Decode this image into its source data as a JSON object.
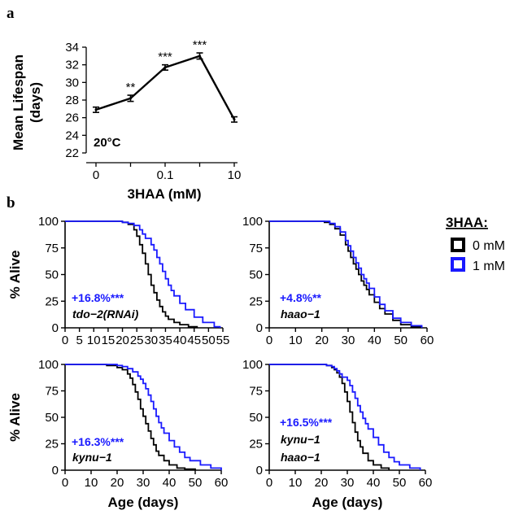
{
  "figure": {
    "panel_a_letter": "a",
    "panel_b_letter": "b"
  },
  "colors": {
    "control": "#000000",
    "treated": "#1a1aff"
  },
  "legend": {
    "title": "3HAA:",
    "entries": [
      "0 mM",
      "1 mM"
    ]
  },
  "chart_data": [
    {
      "type": "line",
      "panel": "a",
      "title": "",
      "xlabel": "3HAA (mM)",
      "ylabel": "Mean Lifespan (days)",
      "ylabel_lines": [
        "Mean Lifespan",
        "(days)"
      ],
      "categories": [
        "0",
        "",
        "0.1",
        "",
        "10"
      ],
      "x_positions": [
        0,
        1,
        2,
        3,
        4
      ],
      "values": [
        26.9,
        28.2,
        31.7,
        33.0,
        25.8
      ],
      "errors": [
        0.3,
        0.35,
        0.3,
        0.35,
        0.3
      ],
      "significance": [
        "",
        "**",
        "***",
        "***",
        ""
      ],
      "annotation": "20°C",
      "ylim": [
        22,
        34
      ],
      "yticks": [
        22,
        24,
        26,
        28,
        30,
        32,
        34
      ],
      "xtick_labels": [
        {
          "pos": 0,
          "label": "0"
        },
        {
          "pos": 2,
          "label": "0.1"
        },
        {
          "pos": 4,
          "label": "10"
        }
      ]
    },
    {
      "type": "line",
      "panel": "b1",
      "xlabel": "",
      "ylabel": "% Alive",
      "xlim": [
        0,
        55
      ],
      "ylim": [
        0,
        100
      ],
      "xticks": [
        0,
        5,
        10,
        15,
        20,
        25,
        30,
        35,
        40,
        45,
        50,
        55
      ],
      "yticks": [
        0,
        25,
        50,
        75,
        100
      ],
      "stat": "+16.8%***",
      "genotype": [
        "tdo−2(RNAi)"
      ],
      "series": [
        {
          "name": "0 mM",
          "x": [
            0,
            15,
            20,
            22,
            24,
            25,
            26,
            27,
            28,
            29,
            30,
            31,
            32,
            33,
            34,
            35,
            36,
            38,
            40,
            43,
            46
          ],
          "y": [
            100,
            100,
            99,
            97,
            92,
            86,
            78,
            70,
            60,
            50,
            40,
            33,
            26,
            20,
            15,
            11,
            8,
            5,
            3,
            1,
            0
          ]
        },
        {
          "name": "1 mM",
          "x": [
            0,
            15,
            20,
            22,
            24,
            26,
            27,
            28,
            30,
            31,
            32,
            33,
            34,
            35,
            36,
            37,
            38,
            40,
            42,
            45,
            48,
            52,
            54
          ],
          "y": [
            100,
            100,
            99,
            98,
            96,
            92,
            88,
            84,
            78,
            73,
            66,
            60,
            53,
            46,
            40,
            35,
            30,
            23,
            17,
            10,
            5,
            1,
            0
          ]
        }
      ]
    },
    {
      "type": "line",
      "panel": "b2",
      "xlabel": "",
      "ylabel": "",
      "xlim": [
        0,
        60
      ],
      "ylim": [
        0,
        100
      ],
      "xticks": [
        0,
        10,
        20,
        30,
        40,
        50,
        60
      ],
      "yticks": [
        0,
        25,
        50,
        75,
        100
      ],
      "stat": "+4.8%**",
      "genotype": [
        "haao−1"
      ],
      "series": [
        {
          "name": "0 mM",
          "x": [
            0,
            18,
            21,
            23,
            25,
            27,
            29,
            30,
            31,
            32,
            33,
            34,
            35,
            36,
            37,
            38,
            40,
            42,
            44,
            47,
            50,
            54,
            58
          ],
          "y": [
            100,
            100,
            99,
            97,
            93,
            87,
            78,
            72,
            66,
            60,
            55,
            50,
            44,
            40,
            36,
            31,
            24,
            18,
            13,
            7,
            3,
            1,
            0
          ]
        },
        {
          "name": "1 mM",
          "x": [
            0,
            18,
            21,
            23,
            25,
            27,
            29,
            30,
            31,
            32,
            33,
            34,
            35,
            36,
            37,
            38,
            40,
            42,
            44,
            47,
            50,
            54,
            58
          ],
          "y": [
            100,
            100,
            100,
            98,
            95,
            90,
            82,
            77,
            72,
            66,
            61,
            56,
            50,
            46,
            42,
            37,
            29,
            22,
            16,
            9,
            5,
            2,
            0
          ]
        }
      ]
    },
    {
      "type": "line",
      "panel": "b3",
      "xlabel": "Age (days)",
      "ylabel": "% Alive",
      "xlim": [
        0,
        60
      ],
      "ylim": [
        0,
        100
      ],
      "xticks": [
        0,
        10,
        20,
        30,
        40,
        50,
        60
      ],
      "yticks": [
        0,
        25,
        50,
        75,
        100
      ],
      "stat": "+16.3%***",
      "genotype": [
        "kynu−1"
      ],
      "series": [
        {
          "name": "0 mM",
          "x": [
            0,
            12,
            16,
            20,
            22,
            24,
            25,
            26,
            27,
            28,
            29,
            30,
            31,
            32,
            33,
            34,
            35,
            36,
            38,
            40,
            43,
            46,
            50
          ],
          "y": [
            100,
            100,
            99,
            97,
            95,
            91,
            87,
            81,
            74,
            67,
            58,
            51,
            44,
            37,
            30,
            24,
            18,
            14,
            9,
            5,
            2,
            1,
            0
          ]
        },
        {
          "name": "1 mM",
          "x": [
            0,
            12,
            16,
            20,
            22,
            24,
            26,
            28,
            29,
            30,
            31,
            32,
            33,
            34,
            35,
            36,
            37,
            38,
            40,
            42,
            44,
            46,
            48,
            52,
            56,
            60
          ],
          "y": [
            100,
            100,
            100,
            99,
            98,
            96,
            93,
            89,
            86,
            82,
            77,
            71,
            65,
            58,
            51,
            45,
            40,
            35,
            28,
            22,
            17,
            12,
            9,
            5,
            2,
            0
          ]
        }
      ]
    },
    {
      "type": "line",
      "panel": "b4",
      "xlabel": "Age (days)",
      "ylabel": "",
      "xlim": [
        0,
        60
      ],
      "ylim": [
        0,
        100
      ],
      "xticks": [
        0,
        10,
        20,
        30,
        40,
        50,
        60
      ],
      "yticks": [
        0,
        25,
        50,
        75,
        100
      ],
      "stat": "+16.5%***",
      "genotype": [
        "kynu−1",
        "haao−1"
      ],
      "series": [
        {
          "name": "0 mM",
          "x": [
            0,
            18,
            22,
            24,
            25,
            26,
            27,
            28,
            29,
            30,
            31,
            32,
            33,
            34,
            35,
            36,
            38,
            40,
            43,
            46
          ],
          "y": [
            100,
            100,
            99,
            97,
            95,
            92,
            88,
            82,
            74,
            65,
            55,
            45,
            36,
            28,
            22,
            16,
            9,
            5,
            2,
            0
          ]
        },
        {
          "name": "1 mM",
          "x": [
            0,
            18,
            22,
            24,
            25,
            26,
            27,
            28,
            30,
            31,
            32,
            33,
            34,
            35,
            36,
            37,
            38,
            40,
            42,
            44,
            46,
            48,
            50,
            54,
            58
          ],
          "y": [
            100,
            100,
            99,
            98,
            96,
            94,
            91,
            88,
            85,
            80,
            74,
            68,
            61,
            55,
            49,
            44,
            39,
            31,
            24,
            17,
            12,
            8,
            5,
            2,
            0
          ]
        }
      ]
    }
  ]
}
